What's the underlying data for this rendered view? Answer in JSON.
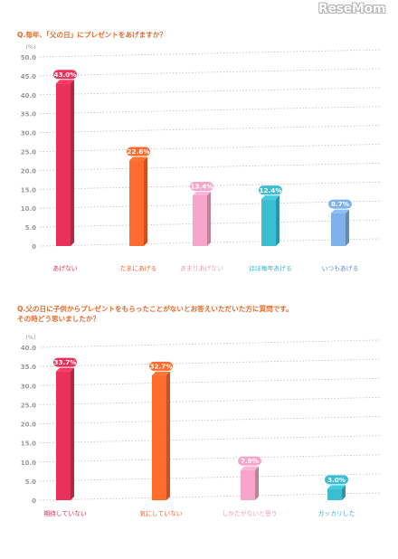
{
  "logo": "ReseMom",
  "chart_data": [
    {
      "type": "bar",
      "title": "Q.毎年、「父の日」にプレゼントをあげますか？",
      "ylabel": "(%)",
      "ylim": [
        0,
        50
      ],
      "yticks": [
        "0",
        "5.0",
        "10.0",
        "15.0",
        "20.0",
        "25.0",
        "30.0",
        "35.0",
        "40.0",
        "45.0",
        "50.0"
      ],
      "grid": true,
      "categories": [
        "あげない",
        "たまにあげる",
        "あまりあげない",
        "ほぼ毎年あげる",
        "いつもあげる"
      ],
      "values": [
        43.0,
        22.6,
        13.4,
        12.4,
        8.7
      ],
      "data_labels": [
        "43.0%",
        "22.6%",
        "13.4%",
        "12.4%",
        "8.7%"
      ],
      "colors": [
        "#e8325a",
        "#ff6b2d",
        "#f6a6c8",
        "#3bbdd2",
        "#7fb2ea"
      ]
    },
    {
      "type": "bar",
      "title": "Q.父の日に子供からプレゼントをもらったことがないとお答えいただいた方に質問です。\nその時どう思いましたか？",
      "ylabel": "(%)",
      "ylim": [
        0,
        40
      ],
      "yticks": [
        "0",
        "5.0",
        "10.0",
        "15.0",
        "20.0",
        "25.0",
        "30.0",
        "35.0",
        "40.0"
      ],
      "grid": true,
      "categories": [
        "期待していない",
        "気にしていない",
        "しかたがないと思う",
        "ガッカリした"
      ],
      "values": [
        33.7,
        32.7,
        7.9,
        3.0
      ],
      "data_labels": [
        "33.7%",
        "32.7%",
        "7.9%",
        "3.0%"
      ],
      "colors": [
        "#e8325a",
        "#ff6b2d",
        "#f6a6c8",
        "#3bbdd2"
      ]
    }
  ]
}
